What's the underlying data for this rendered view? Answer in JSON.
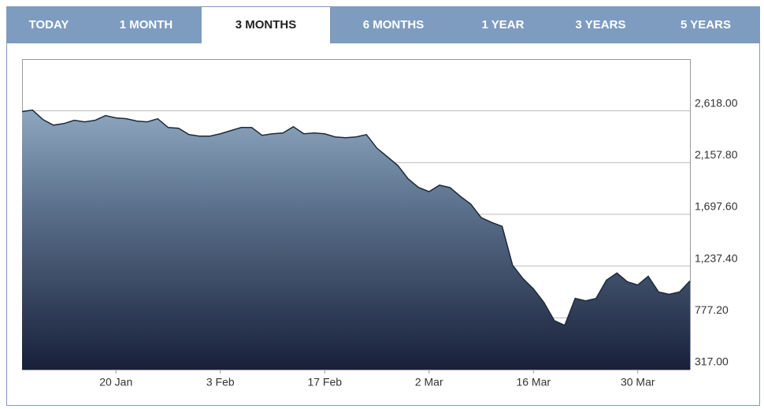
{
  "tabs": [
    "TODAY",
    "1 MONTH",
    "3 MONTHS",
    "6 MONTHS",
    "1 YEAR",
    "3 YEARS",
    "5 YEARS"
  ],
  "active_tab": 2,
  "chart_data": {
    "type": "area",
    "categories": [
      null,
      null,
      null,
      null,
      null,
      null,
      null,
      null,
      null,
      "20 Jan",
      null,
      null,
      null,
      null,
      null,
      null,
      null,
      null,
      null,
      "3 Feb",
      null,
      null,
      null,
      null,
      null,
      null,
      null,
      null,
      null,
      "17 Feb",
      null,
      null,
      null,
      null,
      null,
      null,
      null,
      null,
      null,
      "2 Mar",
      null,
      null,
      null,
      null,
      null,
      null,
      null,
      null,
      null,
      "16 Mar",
      null,
      null,
      null,
      null,
      null,
      null,
      null,
      null,
      null,
      "30 Mar",
      null,
      null,
      null,
      null,
      null
    ],
    "values": [
      2611,
      2625,
      2541,
      2491,
      2505,
      2534,
      2520,
      2534,
      2576,
      2555,
      2548,
      2527,
      2520,
      2548,
      2470,
      2463,
      2407,
      2393,
      2393,
      2414,
      2442,
      2470,
      2470,
      2400,
      2414,
      2421,
      2477,
      2414,
      2421,
      2414,
      2386,
      2379,
      2386,
      2407,
      2287,
      2210,
      2133,
      2013,
      1936,
      1900,
      1957,
      1936,
      1858,
      1788,
      1668,
      1626,
      1591,
      1246,
      1126,
      1035,
      915,
      753,
      711,
      950,
      929,
      950,
      1112,
      1176,
      1098,
      1070,
      1147,
      1007,
      986,
      1007,
      1105
    ],
    "color": "#1e2a3a",
    "ylim": [
      317,
      3078.2
    ],
    "yticks": [
      {
        "value": 317,
        "label": "317.00"
      },
      {
        "value": 777.2,
        "label": "777.20"
      },
      {
        "value": 1237.4,
        "label": "1,237.40"
      },
      {
        "value": 1697.6,
        "label": "1,697.60"
      },
      {
        "value": 2157.8,
        "label": "2,157.80"
      },
      {
        "value": 2618,
        "label": "2,618.00"
      }
    ],
    "grid": true
  }
}
